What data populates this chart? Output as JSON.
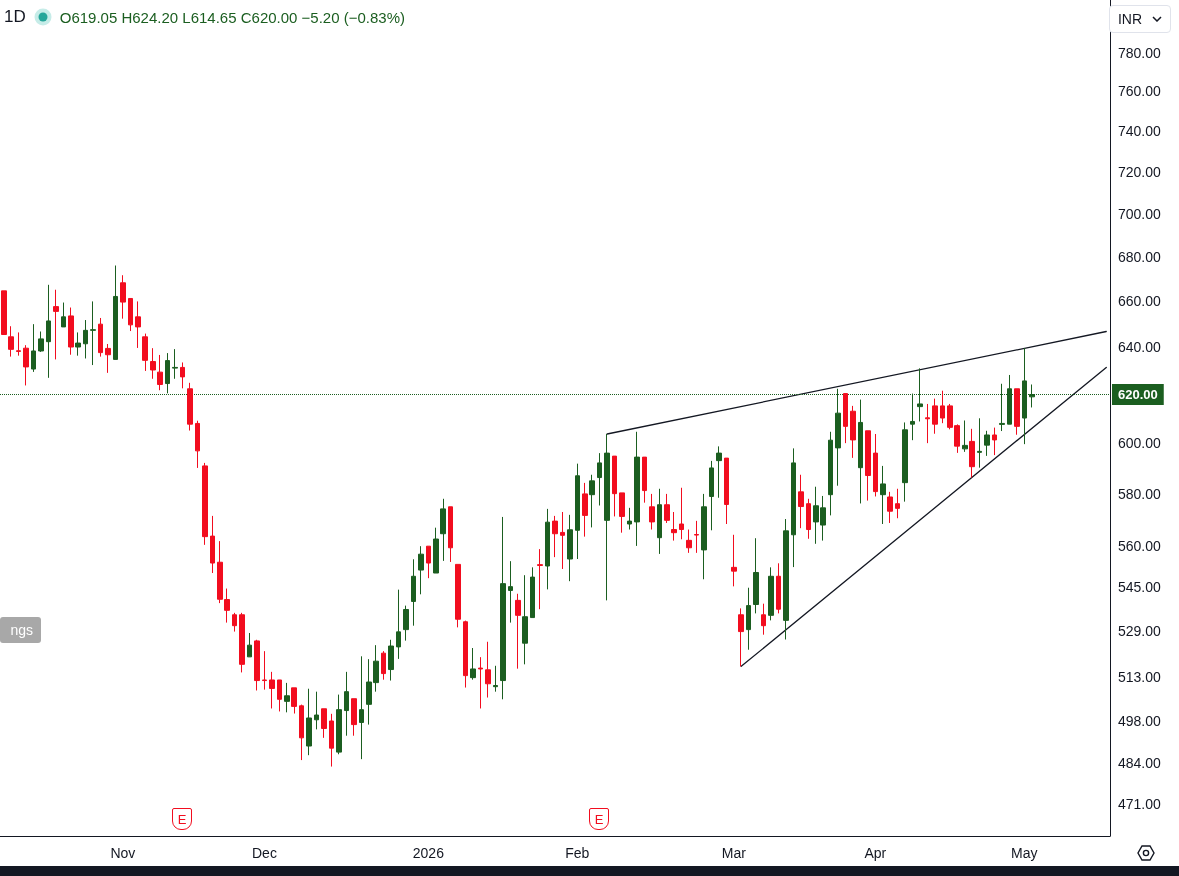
{
  "chart_data": {
    "type": "candlestick",
    "title": "1D",
    "subtitle": "O619.05 H624.20 L614.65 C620.00 −5.20 (−0.83%)",
    "ylabel": "INR",
    "categories": [
      null,
      null,
      null,
      null,
      null,
      null,
      null,
      null,
      null,
      null,
      null,
      null,
      null,
      null,
      null,
      null,
      "Nov",
      null,
      null,
      null,
      null,
      null,
      null,
      null,
      null,
      null,
      null,
      null,
      null,
      null,
      null,
      null,
      null,
      null,
      null,
      "Dec",
      null,
      null,
      null,
      null,
      null,
      null,
      null,
      null,
      null,
      null,
      null,
      null,
      null,
      null,
      null,
      null,
      null,
      null,
      null,
      null,
      null,
      "2026",
      null,
      null,
      null,
      null,
      null,
      null,
      null,
      null,
      null,
      null,
      null,
      null,
      null,
      null,
      null,
      null,
      null,
      null,
      null,
      "Feb",
      null,
      null,
      null,
      null,
      null,
      null,
      null,
      null,
      null,
      null,
      null,
      null,
      null,
      null,
      null,
      null,
      null,
      null,
      null,
      null,
      "Mar",
      null,
      null,
      null,
      null,
      null,
      null,
      null,
      null,
      null,
      null,
      null,
      null,
      null,
      null,
      null,
      null,
      null,
      null,
      "Apr",
      null,
      null,
      null,
      null,
      null,
      null,
      null,
      null,
      null,
      null,
      null,
      null,
      null,
      null,
      null,
      null,
      null,
      null,
      null,
      "May",
      null,
      null,
      null,
      null,
      null,
      null,
      null,
      null,
      null,
      null,
      null
    ],
    "ohlc": [
      [
        664.7,
        664.7,
        645.5,
        645.5
      ],
      [
        644.5,
        649.1,
        636,
        639.1
      ],
      [
        638.5,
        646.4,
        636.4,
        638.2
      ],
      [
        639.6,
        640.9,
        623.8,
        631.6
      ],
      [
        630.7,
        650,
        629.5,
        638.4
      ],
      [
        638.4,
        646.8,
        638,
        643.6
      ],
      [
        642.4,
        667.4,
        627,
        651.4
      ],
      [
        657.7,
        665.2,
        634.8,
        655.6
      ],
      [
        648.8,
        659.5,
        648.8,
        653.2
      ],
      [
        653.6,
        657.3,
        636.8,
        640.1
      ],
      [
        640.1,
        646.4,
        636.4,
        641.8
      ],
      [
        641.5,
        651.8,
        635.2,
        647.3
      ],
      [
        647.3,
        660,
        632.4,
        647.6
      ],
      [
        650,
        652.7,
        636,
        637.7
      ],
      [
        639.5,
        641.4,
        629.1,
        636.8
      ],
      [
        634.8,
        676.1,
        634.8,
        662.2
      ],
      [
        668.3,
        671.7,
        652.4,
        659.7
      ],
      [
        661.3,
        661.3,
        647,
        649.7
      ],
      [
        653.2,
        660,
        639.7,
        648.8
      ],
      [
        644.5,
        645.9,
        629.9,
        634.4
      ],
      [
        633.9,
        639.6,
        626.6,
        630.3
      ],
      [
        629.4,
        636.7,
        621.8,
        624.2
      ],
      [
        624.6,
        637.5,
        620.5,
        634.3
      ],
      [
        631.1,
        639.2,
        626.6,
        631.4
      ],
      [
        631.4,
        633.5,
        622.6,
        627.4
      ],
      [
        622.4,
        624.9,
        605.2,
        607.8
      ],
      [
        608.1,
        609.2,
        590.2,
        597
      ],
      [
        591,
        592.2,
        560.5,
        563.6
      ],
      [
        563.8,
        571.5,
        550,
        553.7
      ],
      [
        554,
        561.9,
        539,
        540.4
      ],
      [
        540.3,
        544.3,
        532,
        536.4
      ],
      [
        534.8,
        535.5,
        528.8,
        530.9
      ],
      [
        534.8,
        535.5,
        514.5,
        517.3
      ],
      [
        519.9,
        528.3,
        519.9,
        524
      ],
      [
        525.5,
        525.9,
        508.3,
        511.7
      ],
      [
        511.9,
        521.9,
        508.6,
        511.7
      ],
      [
        511.9,
        514.7,
        502.2,
        509
      ],
      [
        511.9,
        511.9,
        501.2,
        505.3
      ],
      [
        504.6,
        510.9,
        500.9,
        506.5
      ],
      [
        509.2,
        509.2,
        500.5,
        502.9
      ],
      [
        503.1,
        503.5,
        485.1,
        492.4
      ],
      [
        489.7,
        508.9,
        486.7,
        499
      ],
      [
        498.4,
        507.9,
        495.2,
        500
      ],
      [
        502.1,
        502.1,
        492.4,
        495.5
      ],
      [
        498,
        500.4,
        483,
        489
      ],
      [
        487.7,
        506.9,
        487,
        501.8
      ],
      [
        501.5,
        514.7,
        493.1,
        507.9
      ],
      [
        505.5,
        505.5,
        493.1,
        496.8
      ],
      [
        497.5,
        520.1,
        485.4,
        501.8
      ],
      [
        503.6,
        519.1,
        496.8,
        511.2
      ],
      [
        511,
        524,
        507.9,
        518.4
      ],
      [
        521.2,
        521.9,
        512,
        514.1
      ],
      [
        515.5,
        525.9,
        511.7,
        523.7
      ],
      [
        523.4,
        543.9,
        519.2,
        528.7
      ],
      [
        529.5,
        538.1,
        525.6,
        536.7
      ],
      [
        539.6,
        555.1,
        530.9,
        548.8
      ],
      [
        551.1,
        560,
        542.2,
        557
      ],
      [
        560,
        560,
        548.1,
        553.7
      ],
      [
        550,
        567,
        550,
        562.7
      ],
      [
        564.7,
        578.1,
        554.5,
        574.2
      ],
      [
        575,
        575,
        554.1,
        559.4
      ],
      [
        553.2,
        553.2,
        530.3,
        533.2
      ],
      [
        532.3,
        532.7,
        509.3,
        513.4
      ],
      [
        512.7,
        523,
        512,
        515.7
      ],
      [
        516,
        519.8,
        502.2,
        515.7
      ],
      [
        515.4,
        525.2,
        505.9,
        510.6
      ],
      [
        509.6,
        516.8,
        507.9,
        510
      ],
      [
        511.7,
        571.1,
        505.3,
        546.1
      ],
      [
        543.6,
        554.4,
        532,
        545
      ],
      [
        540,
        542.4,
        515.8,
        534.6
      ],
      [
        524.7,
        549.2,
        517.3,
        534.1
      ],
      [
        533.8,
        552.1,
        533.8,
        548.5
      ],
      [
        553.1,
        558.9,
        536.8,
        552.8
      ],
      [
        552.6,
        574.2,
        544,
        569.1
      ],
      [
        569.5,
        571.5,
        555.9,
        564.7
      ],
      [
        565.2,
        573,
        551.5,
        564.1
      ],
      [
        555.2,
        571.9,
        547,
        566.2
      ],
      [
        566,
        591.9,
        555.2,
        587.1
      ],
      [
        580,
        584.3,
        563.6,
        571.7
      ],
      [
        579.7,
        587.5,
        567.1,
        585.1
      ],
      [
        586.4,
        596.1,
        575.5,
        592.2
      ],
      [
        569.8,
        603.8,
        540,
        596.1
      ],
      [
        594.9,
        594.9,
        571.3,
        580.1
      ],
      [
        580.4,
        580.4,
        565.1,
        571.3
      ],
      [
        568.4,
        574.6,
        566.3,
        569.5
      ],
      [
        569.2,
        604.7,
        560.1,
        594.5
      ],
      [
        594.5,
        594.5,
        576.6,
        581.3
      ],
      [
        575,
        580,
        566.3,
        569.2
      ],
      [
        563.2,
        582,
        557.1,
        575.8
      ],
      [
        575.8,
        580,
        568.8,
        569.8
      ],
      [
        566.3,
        573,
        562.1,
        565.1
      ],
      [
        568.4,
        582.4,
        562.6,
        566.3
      ],
      [
        562.2,
        566.3,
        557.5,
        559.4
      ],
      [
        564.4,
        569.6,
        557.5,
        564.2
      ],
      [
        558.6,
        580,
        547.7,
        575
      ],
      [
        579,
        593,
        566,
        590.2
      ],
      [
        593.1,
        598.8,
        578.5,
        596.1
      ],
      [
        594.1,
        594.1,
        568.4,
        575.9
      ],
      [
        552.1,
        564.3,
        545.1,
        550.7
      ],
      [
        534.8,
        537.1,
        516.6,
        528.8
      ],
      [
        529.5,
        544.6,
        522.4,
        538.1
      ],
      [
        538.5,
        563,
        535.3,
        550.2
      ],
      [
        534.8,
        538.8,
        527.7,
        530.9
      ],
      [
        534.6,
        552.1,
        532.8,
        548.8
      ],
      [
        548.8,
        553.6,
        535.3,
        536.8
      ],
      [
        532.8,
        570.3,
        526,
        565.8
      ],
      [
        564.3,
        598,
        552.2,
        592.2
      ],
      [
        580.8,
        587.5,
        566.8,
        575.1
      ],
      [
        576.2,
        578.1,
        562.8,
        566.3
      ],
      [
        569.2,
        582.8,
        560.9,
        575.4
      ],
      [
        568,
        579.2,
        562.1,
        574.6
      ],
      [
        579.7,
        604.7,
        571.7,
        601.3
      ],
      [
        598.2,
        622.4,
        583.2,
        612.3
      ],
      [
        620.4,
        620.4,
        600.1,
        606.9
      ],
      [
        613.1,
        615.3,
        594.2,
        601.4
      ],
      [
        590.3,
        617.9,
        576.3,
        608.5
      ],
      [
        605.1,
        605.1,
        577.4,
        587.2
      ],
      [
        596.1,
        603.8,
        579,
        580.9
      ],
      [
        579.7,
        591,
        568.4,
        583.9
      ],
      [
        578.8,
        580.8,
        568.8,
        573.3
      ],
      [
        576.2,
        582,
        570.6,
        574.4
      ],
      [
        584.4,
        608.5,
        577,
        605.5
      ],
      [
        607.8,
        620.4,
        601.3,
        608.9
      ],
      [
        615,
        631,
        608.9,
        616.1
      ],
      [
        610.4,
        616.1,
        600.1,
        610
      ],
      [
        615.3,
        618.3,
        603.9,
        607.8
      ],
      [
        615.3,
        621.6,
        608.2,
        610.3
      ],
      [
        615.3,
        616.1,
        605.7,
        606.5
      ],
      [
        607.2,
        607.7,
        596.2,
        598.9
      ],
      [
        597.8,
        609.3,
        596.6,
        599.2
      ],
      [
        600.8,
        605.9,
        586.4,
        590.7
      ],
      [
        596.4,
        610.2,
        590.3,
        596.8
      ],
      [
        599.3,
        605.1,
        595,
        603.4
      ],
      [
        603.4,
        606.4,
        595.3,
        601.4
      ],
      [
        607.7,
        624.5,
        605,
        608.1
      ],
      [
        607.8,
        628.2,
        607.8,
        622.4
      ],
      [
        622.4,
        622.4,
        603.5,
        606.9
      ],
      [
        610.3,
        639.6,
        599.7,
        625.7
      ],
      [
        619.05,
        624.2,
        614.65,
        620
      ],
      null,
      null,
      null,
      null,
      null,
      null,
      null,
      null,
      null,
      null
    ],
    "colors": [
      "#f20d1f",
      "#f20d1f",
      "#f20d1f",
      "#f20d1f",
      "#1b5e20",
      "#1b5e20",
      "#1b5e20",
      "#f20d1f",
      "#1b5e20",
      "#f20d1f",
      "#1b5e20",
      "#1b5e20",
      "#1b5e20",
      "#f20d1f",
      "#f20d1f",
      "#1b5e20",
      "#f20d1f",
      "#f20d1f",
      "#f20d1f",
      "#f20d1f",
      "#f20d1f",
      "#f20d1f",
      "#1b5e20",
      "#1b5e20",
      "#f20d1f",
      "#f20d1f",
      "#f20d1f",
      "#f20d1f",
      "#f20d1f",
      "#f20d1f",
      "#f20d1f",
      "#f20d1f",
      "#f20d1f",
      "#1b5e20",
      "#f20d1f",
      "#f20d1f",
      "#f20d1f",
      "#f20d1f",
      "#1b5e20",
      "#f20d1f",
      "#f20d1f",
      "#1b5e20",
      "#1b5e20",
      "#f20d1f",
      "#f20d1f",
      "#1b5e20",
      "#1b5e20",
      "#f20d1f",
      "#1b5e20",
      "#1b5e20",
      "#1b5e20",
      "#f20d1f",
      "#1b5e20",
      "#1b5e20",
      "#1b5e20",
      "#1b5e20",
      "#1b5e20",
      "#f20d1f",
      "#1b5e20",
      "#1b5e20",
      "#f20d1f",
      "#f20d1f",
      "#f20d1f",
      "#1b5e20",
      "#f20d1f",
      "#f20d1f",
      "#1b5e20",
      "#1b5e20",
      "#1b5e20",
      "#f20d1f",
      "#1b5e20",
      "#1b5e20",
      "#f20d1f",
      "#1b5e20",
      "#f20d1f",
      "#f20d1f",
      "#1b5e20",
      "#1b5e20",
      "#f20d1f",
      "#1b5e20",
      "#1b5e20",
      "#1b5e20",
      "#f20d1f",
      "#f20d1f",
      "#1b5e20",
      "#1b5e20",
      "#f20d1f",
      "#f20d1f",
      "#1b5e20",
      "#f20d1f",
      "#f20d1f",
      "#f20d1f",
      "#f20d1f",
      "#f20d1f",
      "#1b5e20",
      "#1b5e20",
      "#1b5e20",
      "#f20d1f",
      "#f20d1f",
      "#f20d1f",
      "#1b5e20",
      "#1b5e20",
      "#f20d1f",
      "#1b5e20",
      "#f20d1f",
      "#1b5e20",
      "#1b5e20",
      "#f20d1f",
      "#f20d1f",
      "#1b5e20",
      "#1b5e20",
      "#1b5e20",
      "#1b5e20",
      "#f20d1f",
      "#f20d1f",
      "#1b5e20",
      "#f20d1f",
      "#f20d1f",
      "#1b5e20",
      "#f20d1f",
      "#f20d1f",
      "#1b5e20",
      "#1b5e20",
      "#1b5e20",
      "#f20d1f",
      "#f20d1f",
      "#f20d1f",
      "#f20d1f",
      "#f20d1f",
      "#1b5e20",
      "#f20d1f",
      "#1b5e20",
      "#1b5e20",
      "#f20d1f",
      "#1b5e20",
      "#1b5e20",
      "#f20d1f",
      "#1b5e20",
      "#1b5e20",
      null,
      null,
      null,
      null,
      null,
      null,
      null,
      null,
      null,
      null
    ],
    "series": [
      {
        "type": "line",
        "color": "#131722",
        "values": [
          null,
          null,
          null,
          null,
          null,
          null,
          null,
          null,
          null,
          null,
          null,
          null,
          null,
          null,
          null,
          null,
          null,
          null,
          null,
          null,
          null,
          null,
          null,
          null,
          null,
          null,
          null,
          null,
          null,
          null,
          null,
          null,
          null,
          null,
          null,
          null,
          null,
          null,
          null,
          null,
          null,
          null,
          null,
          null,
          null,
          null,
          null,
          null,
          null,
          null,
          null,
          null,
          null,
          null,
          null,
          null,
          null,
          null,
          null,
          null,
          null,
          null,
          null,
          null,
          null,
          null,
          null,
          null,
          null,
          null,
          null,
          null,
          null,
          null,
          null,
          null,
          null,
          null,
          null,
          null,
          null,
          603.8,
          null,
          null,
          null,
          null,
          null,
          null,
          null,
          null,
          null,
          null,
          null,
          null,
          null,
          null,
          null,
          null,
          null,
          null,
          null,
          null,
          null,
          null,
          null,
          null,
          null,
          null,
          null,
          null,
          null,
          null,
          null,
          null,
          null,
          null,
          null,
          null,
          null,
          null,
          null,
          null,
          null,
          null,
          null,
          null,
          null,
          null,
          null,
          null,
          null,
          null,
          null,
          null,
          null,
          null,
          null,
          null,
          null,
          null,
          null,
          null,
          null,
          null,
          null,
          null,
          null,
          null,
          646.8
        ]
      },
      {
        "type": "line",
        "color": "#131722",
        "values": [
          null,
          null,
          null,
          null,
          null,
          null,
          null,
          null,
          null,
          null,
          null,
          null,
          null,
          null,
          null,
          null,
          null,
          null,
          null,
          null,
          null,
          null,
          null,
          null,
          null,
          null,
          null,
          null,
          null,
          null,
          null,
          null,
          null,
          null,
          null,
          null,
          null,
          null,
          null,
          null,
          null,
          null,
          null,
          null,
          null,
          null,
          null,
          null,
          null,
          null,
          null,
          null,
          null,
          null,
          null,
          null,
          null,
          null,
          null,
          null,
          null,
          null,
          null,
          null,
          null,
          null,
          null,
          null,
          null,
          null,
          null,
          null,
          null,
          null,
          null,
          null,
          null,
          null,
          null,
          null,
          null,
          null,
          null,
          null,
          null,
          null,
          null,
          null,
          null,
          null,
          null,
          null,
          null,
          null,
          null,
          null,
          null,
          null,
          null,
          516.6,
          null,
          null,
          null,
          null,
          null,
          null,
          null,
          null,
          null,
          null,
          null,
          null,
          null,
          null,
          null,
          null,
          null,
          null,
          null,
          null,
          null,
          null,
          null,
          null,
          null,
          null,
          null,
          null,
          null,
          null,
          null,
          null,
          null,
          null,
          null,
          null,
          null,
          null,
          null,
          null,
          null,
          null,
          null,
          null,
          null,
          null,
          null,
          null,
          631.4
        ]
      }
    ],
    "log": "y",
    "ylim": [
      461,
      808
    ],
    "yticks": [
      {
        "value": 471,
        "label": "471.00"
      },
      {
        "value": 484,
        "label": "484.00"
      },
      {
        "value": 498,
        "label": "498.00"
      },
      {
        "value": 513,
        "label": "513.00"
      },
      {
        "value": 529,
        "label": "529.00"
      },
      {
        "value": 545,
        "label": "545.00"
      },
      {
        "value": 560,
        "label": "560.00"
      },
      {
        "value": 580,
        "label": "580.00"
      },
      {
        "value": 600,
        "label": "600.00"
      },
      {
        "value": 640,
        "label": "640.00"
      },
      {
        "value": 660,
        "label": "660.00"
      },
      {
        "value": 680,
        "label": "680.00"
      },
      {
        "value": 700,
        "label": "700.00"
      },
      {
        "value": 720,
        "label": "720.00"
      },
      {
        "value": 740,
        "label": "740.00"
      },
      {
        "value": 760,
        "label": "760.00"
      },
      {
        "value": 780,
        "label": "780.00"
      }
    ],
    "ref_lines": [
      {
        "axis": "y",
        "value": 620,
        "label": "620.00",
        "color": "#1b5e20",
        "line_style": "dotted"
      }
    ],
    "annotations": [
      "ngs",
      "E",
      "E"
    ]
  }
}
